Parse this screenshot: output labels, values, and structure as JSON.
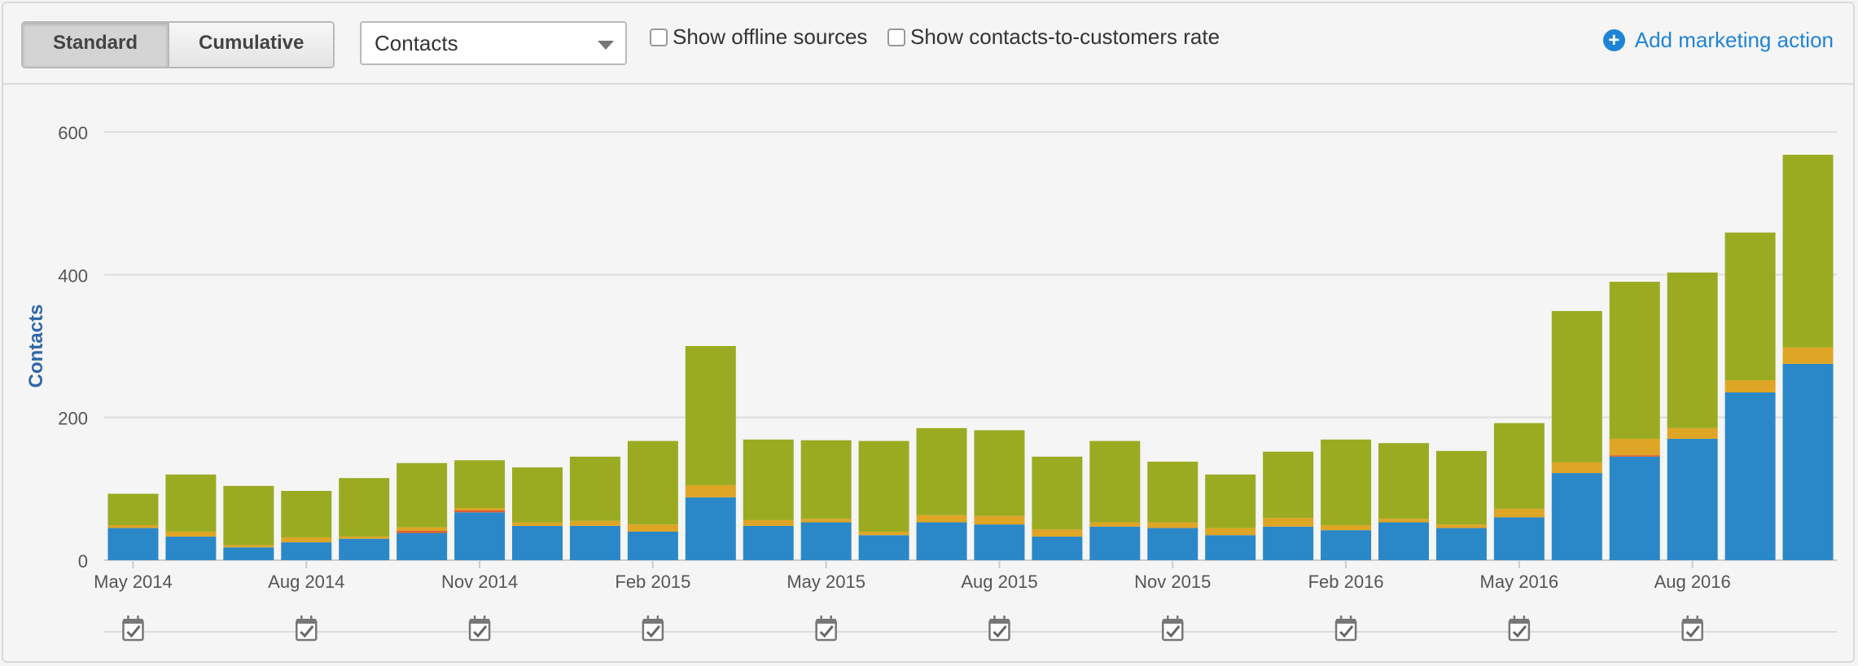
{
  "toolbar": {
    "toggle": [
      "Standard",
      "Cumulative"
    ],
    "active_toggle": "Standard",
    "select_value": "Contacts",
    "checkbox_offline": "Show offline sources",
    "checkbox_rate": "Show contacts-to-customers rate",
    "add_action": "Add marketing action"
  },
  "colors": {
    "blue": "#2b88c8",
    "orange": "#dfa524",
    "red": "#d95d2e",
    "green": "#9aab22"
  },
  "chart_data": {
    "type": "bar",
    "stacked": true,
    "ylabel": "Contacts",
    "ylim": [
      0,
      600
    ],
    "yticks": [
      0,
      200,
      400,
      600
    ],
    "x_tick_labels": [
      "May 2014",
      "Aug 2014",
      "Nov 2014",
      "Feb 2015",
      "May 2015",
      "Aug 2015",
      "Nov 2015",
      "Feb 2016",
      "May 2016",
      "Aug 2016"
    ],
    "categories": [
      "May 2014",
      "Jun 2014",
      "Jul 2014",
      "Aug 2014",
      "Sep 2014",
      "Oct 2014",
      "Nov 2014",
      "Dec 2014",
      "Jan 2015",
      "Feb 2015",
      "Mar 2015",
      "Apr 2015",
      "May 2015",
      "Jun 2015",
      "Jul 2015",
      "Aug 2015",
      "Sep 2015",
      "Oct 2015",
      "Nov 2015",
      "Dec 2015",
      "Jan 2016",
      "Feb 2016",
      "Mar 2016",
      "Apr 2016",
      "May 2016",
      "Jun 2016",
      "Jul 2016",
      "Aug 2016",
      "Sep 2016",
      "Oct 2016"
    ],
    "series": [
      {
        "color": "#2b88c8",
        "values": [
          45,
          33,
          18,
          25,
          30,
          38,
          67,
          48,
          48,
          40,
          88,
          48,
          53,
          35,
          53,
          50,
          33,
          47,
          45,
          35,
          47,
          42,
          53,
          45,
          60,
          122,
          145,
          170,
          235,
          275
        ]
      },
      {
        "color": "#d95d2e",
        "values": [
          0,
          0,
          0,
          0,
          0,
          3,
          3,
          0,
          0,
          0,
          0,
          0,
          0,
          0,
          0,
          0,
          0,
          0,
          0,
          0,
          0,
          0,
          0,
          0,
          0,
          0,
          2,
          0,
          0,
          0
        ]
      },
      {
        "color": "#dfa524",
        "values": [
          4,
          7,
          3,
          7,
          3,
          5,
          3,
          5,
          7,
          10,
          17,
          8,
          5,
          5,
          10,
          12,
          10,
          6,
          8,
          10,
          12,
          7,
          5,
          5,
          12,
          15,
          23,
          15,
          17,
          23
        ]
      },
      {
        "color": "#9aab22",
        "values": [
          44,
          80,
          83,
          65,
          82,
          90,
          67,
          77,
          90,
          117,
          195,
          113,
          110,
          127,
          122,
          120,
          102,
          114,
          85,
          75,
          93,
          120,
          106,
          103,
          120,
          212,
          220,
          218,
          207,
          270
        ]
      }
    ]
  }
}
